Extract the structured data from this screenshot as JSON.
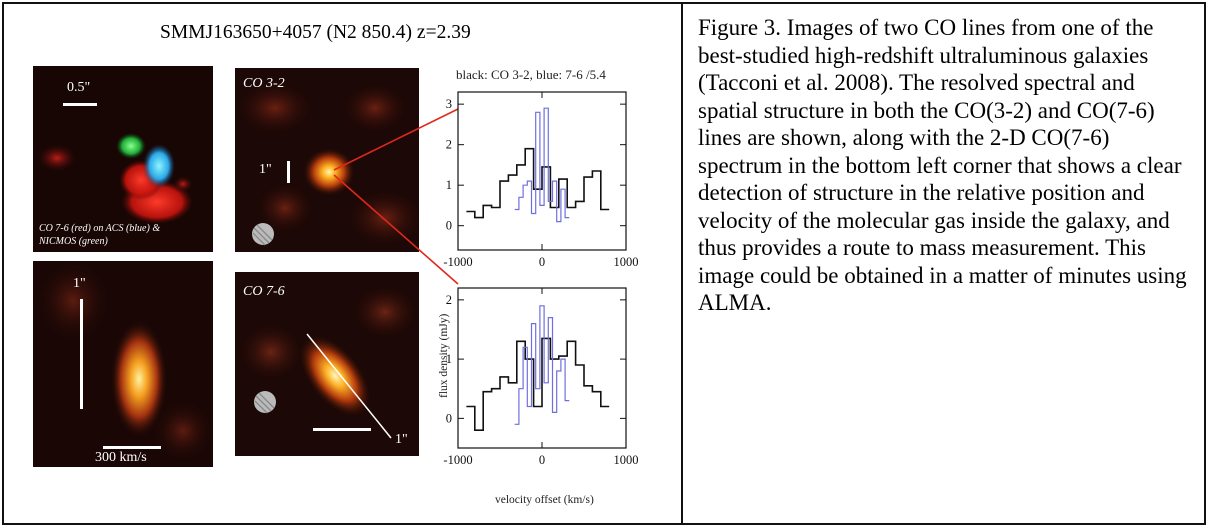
{
  "figure": {
    "title": "SMMJ163650+4057 (N2 850.4)  z=2.39",
    "panel_top_left": {
      "scale_label": "0.5\"",
      "note_line1": "CO 7-6 (red) on ACS (blue) &",
      "note_line2": "NICMOS (green)"
    },
    "panel_top_mid": {
      "label": "CO 3-2",
      "scale_label": "1\""
    },
    "panel_bottom_left": {
      "scale_label": "1\"",
      "velocity_label": "300 km/s"
    },
    "panel_bottom_mid": {
      "label": "CO 7-6",
      "scale_label": "1\""
    },
    "colors": {
      "panel_bg": "#1e0906",
      "black_line": "#111111",
      "blue_line": "#6f6fe0",
      "pointer": "#e0281c"
    }
  },
  "chart_data": [
    {
      "type": "line",
      "title": "black: CO 3-2, blue: 7-6 /5.4",
      "xlabel": "",
      "ylabel": "",
      "xlim": [
        -1000,
        1000
      ],
      "ylim": [
        -0.6,
        3.3
      ],
      "x_ticks": [
        "-1000",
        "0",
        "1000"
      ],
      "y_ticks": [
        "0",
        "1",
        "2",
        "3"
      ],
      "series": [
        {
          "name": "CO 3-2",
          "x": [
            -850,
            -750,
            -650,
            -550,
            -450,
            -350,
            -250,
            -150,
            -50,
            50,
            150,
            250,
            350,
            450,
            550,
            650,
            750
          ],
          "values": [
            0.35,
            0.2,
            0.5,
            0.45,
            1.1,
            1.25,
            1.5,
            1.9,
            0.9,
            1.45,
            0.45,
            1.15,
            0.45,
            0.6,
            1.2,
            1.35,
            0.4
          ]
        },
        {
          "name": "CO 7-6 /5.4",
          "x": [
            -300,
            -250,
            -200,
            -150,
            -100,
            -50,
            0,
            50,
            100,
            150,
            200,
            250,
            300
          ],
          "values": [
            0.4,
            0.7,
            1.0,
            1.1,
            0.3,
            2.8,
            0.5,
            2.9,
            0.6,
            1.1,
            0.1,
            0.9,
            0.2
          ]
        }
      ]
    },
    {
      "type": "line",
      "title": "",
      "xlabel": "velocity offset (km/s)",
      "ylabel": "flux density (mJy)",
      "xlim": [
        -1000,
        1000
      ],
      "ylim": [
        -0.5,
        2.2
      ],
      "x_ticks": [
        "-1000",
        "0",
        "1000"
      ],
      "y_ticks": [
        "0",
        "1",
        "2"
      ],
      "series": [
        {
          "name": "CO 3-2",
          "x": [
            -850,
            -750,
            -650,
            -550,
            -450,
            -350,
            -250,
            -150,
            -50,
            50,
            150,
            250,
            350,
            450,
            550,
            650,
            750
          ],
          "values": [
            0.2,
            -0.2,
            0.45,
            0.5,
            0.7,
            0.6,
            1.3,
            1.0,
            0.2,
            1.35,
            1.0,
            1.05,
            1.3,
            0.9,
            0.55,
            0.45,
            0.2
          ]
        },
        {
          "name": "CO 7-6 /5.4",
          "x": [
            -300,
            -250,
            -200,
            -150,
            -100,
            -50,
            0,
            50,
            100,
            150,
            200,
            250,
            300
          ],
          "values": [
            -0.1,
            0.5,
            1.2,
            0.2,
            1.6,
            0.5,
            1.9,
            0.6,
            1.7,
            0.1,
            0.8,
            1.0,
            0.3
          ]
        }
      ]
    }
  ],
  "caption": "Figure 3. Images of two CO lines from one of the best-studied high-redshift ultraluminous galaxies (Tacconi et al. 2008). The resolved spectral and spatial structure in both the CO(3-2) and CO(7-6) lines are shown, along with the 2-D CO(7-6) spectrum in the bottom left corner that shows a clear detection of structure in the relative position and velocity of the molecular gas inside the galaxy, and thus provides a route to mass measurement. This image could be obtained in a matter of minutes using ALMA."
}
